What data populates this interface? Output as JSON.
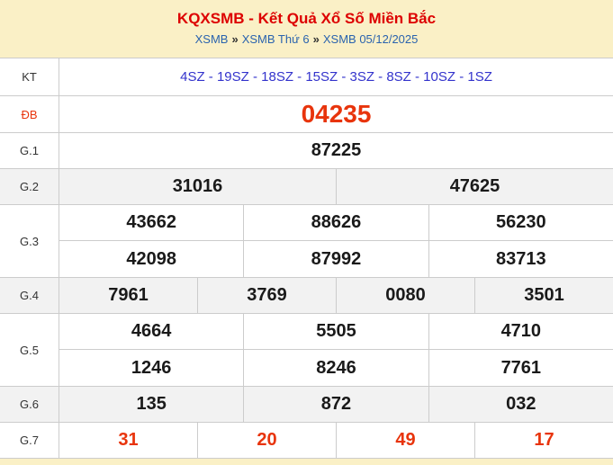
{
  "header": {
    "title": "KQXSMB - Kết Quả Xổ Số Miền Bắc",
    "separator": "»",
    "breadcrumb": [
      {
        "label": "XSMB"
      },
      {
        "label": "XSMB Thứ 6"
      },
      {
        "label": "XSMB 05/12/2025"
      }
    ]
  },
  "colors": {
    "page_background": "#faf0c6",
    "title_red": "#dd0000",
    "special_red": "#e8340c",
    "link_blue": "#2a63ae",
    "kt_blue": "#3333cc",
    "number_black": "#1a1a1a",
    "shaded_row": "#f2f2f2",
    "border": "#cccccc"
  },
  "table": {
    "rows": [
      {
        "label": "KT",
        "cells": [
          "4SZ - 19SZ - 18SZ - 15SZ - 3SZ - 8SZ - 10SZ - 1SZ"
        ]
      },
      {
        "label": "ĐB",
        "cells": [
          "04235"
        ]
      },
      {
        "label": "G.1",
        "cells": [
          "87225"
        ]
      },
      {
        "label": "G.2",
        "cells": [
          "31016",
          "47625"
        ]
      },
      {
        "label": "G.3",
        "lines": [
          [
            "43662",
            "88626",
            "56230"
          ],
          [
            "42098",
            "87992",
            "83713"
          ]
        ]
      },
      {
        "label": "G.4",
        "cells": [
          "7961",
          "3769",
          "0080",
          "3501"
        ]
      },
      {
        "label": "G.5",
        "lines": [
          [
            "4664",
            "5505",
            "4710"
          ],
          [
            "1246",
            "8246",
            "7761"
          ]
        ]
      },
      {
        "label": "G.6",
        "cells": [
          "135",
          "872",
          "032"
        ]
      },
      {
        "label": "G.7",
        "cells": [
          "31",
          "20",
          "49",
          "17"
        ]
      }
    ]
  }
}
